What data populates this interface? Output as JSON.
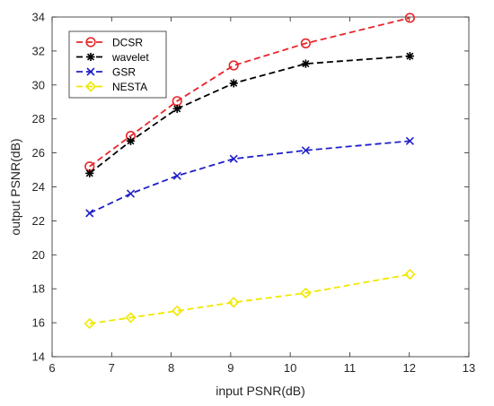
{
  "chart_data": {
    "type": "line",
    "xlabel": "input PSNR(dB)",
    "ylabel": "output PSNR(dB)",
    "xlim": [
      6,
      13
    ],
    "ylim": [
      14,
      34
    ],
    "xticks": [
      "6",
      "7",
      "8",
      "9",
      "10",
      "11",
      "12",
      "13"
    ],
    "yticks": [
      "14",
      "16",
      "18",
      "20",
      "22",
      "24",
      "26",
      "28",
      "30",
      "32",
      "34"
    ],
    "x": [
      6.63,
      7.32,
      8.1,
      9.05,
      10.26,
      12.01
    ],
    "grid": false,
    "legend_position": "top-left",
    "series": [
      {
        "name": "DCSR",
        "color": "#e8262a",
        "marker": "circle",
        "values": [
          25.2,
          27.0,
          29.05,
          31.15,
          32.45,
          33.95
        ]
      },
      {
        "name": "wavelet",
        "color": "#000000",
        "marker": "asterisk",
        "values": [
          24.8,
          26.7,
          28.6,
          30.1,
          31.25,
          31.7
        ]
      },
      {
        "name": "GSR",
        "color": "#2020c8",
        "marker": "x",
        "values": [
          22.45,
          23.6,
          24.65,
          25.65,
          26.15,
          26.7
        ]
      },
      {
        "name": "NESTA",
        "color": "#f0e800",
        "marker": "diamond",
        "values": [
          15.95,
          16.3,
          16.7,
          17.2,
          17.75,
          18.85
        ]
      }
    ]
  }
}
